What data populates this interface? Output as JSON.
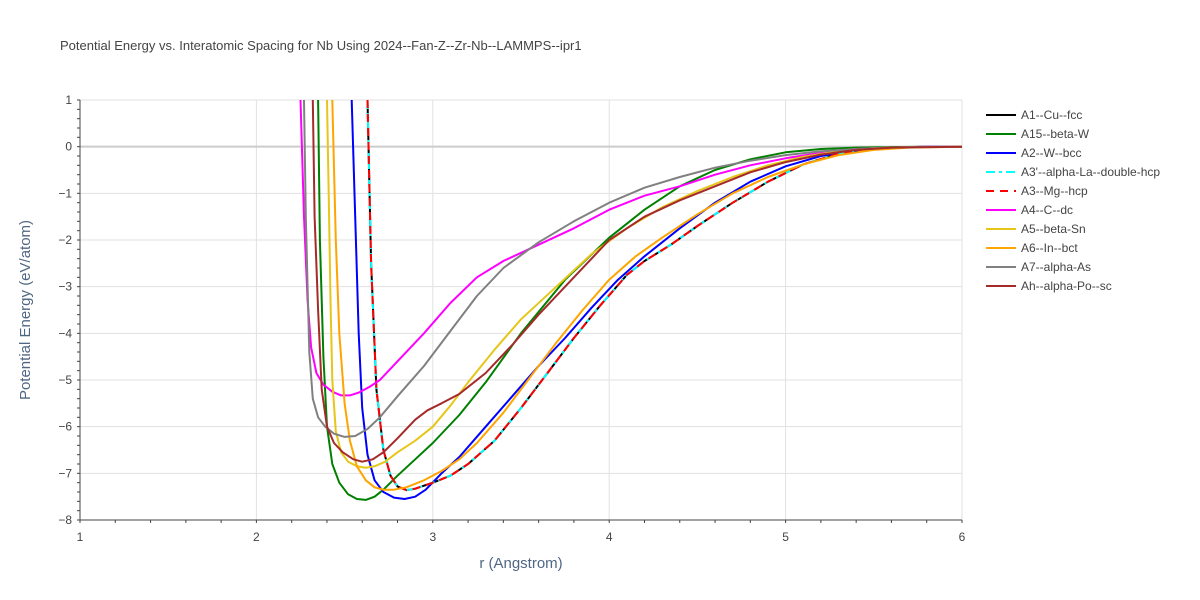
{
  "chart_data": {
    "type": "line",
    "title": "Potential Energy vs. Interatomic Spacing for Nb Using 2024--Fan-Z--Zr-Nb--LAMMPS--ipr1",
    "xlabel": "r (Angstrom)",
    "ylabel": "Potential Energy (eV/atom)",
    "xlim": [
      1,
      6
    ],
    "ylim": [
      -8,
      1
    ],
    "xticks": [
      1,
      2,
      3,
      4,
      5,
      6
    ],
    "yticks": [
      1,
      0,
      -1,
      -2,
      -3,
      -4,
      -5,
      -6,
      -7,
      -8
    ],
    "grid": true,
    "legend_position": "right",
    "series": [
      {
        "name": "A1--Cu--fcc",
        "color": "#000000",
        "dash": "solid",
        "x": [
          2.63,
          2.65,
          2.68,
          2.72,
          2.76,
          2.8,
          2.85,
          2.9,
          3.0,
          3.1,
          3.2,
          3.35,
          3.5,
          3.65,
          3.8,
          3.95,
          4.1,
          4.2,
          4.35,
          4.5,
          4.7,
          4.9,
          5.1,
          5.3,
          5.5,
          5.7,
          5.85,
          6.0
        ],
        "y": [
          1.0,
          -2.5,
          -5.2,
          -6.5,
          -7.05,
          -7.28,
          -7.36,
          -7.33,
          -7.2,
          -7.05,
          -6.8,
          -6.3,
          -5.6,
          -4.85,
          -4.1,
          -3.4,
          -2.75,
          -2.45,
          -2.1,
          -1.7,
          -1.2,
          -0.75,
          -0.38,
          -0.15,
          -0.05,
          -0.01,
          0.0,
          0.0
        ]
      },
      {
        "name": "A15--beta-W",
        "color": "#008000",
        "dash": "solid",
        "x": [
          2.35,
          2.36,
          2.38,
          2.4,
          2.43,
          2.47,
          2.52,
          2.57,
          2.62,
          2.67,
          2.72,
          2.8,
          2.9,
          3.0,
          3.15,
          3.3,
          3.5,
          3.75,
          4.0,
          4.2,
          4.4,
          4.6,
          4.8,
          5.0,
          5.2,
          5.4,
          5.6,
          5.8,
          6.0
        ],
        "y": [
          1.0,
          -2.0,
          -4.5,
          -6.0,
          -6.8,
          -7.2,
          -7.45,
          -7.55,
          -7.57,
          -7.5,
          -7.35,
          -7.05,
          -6.7,
          -6.35,
          -5.75,
          -5.05,
          -4.0,
          -2.85,
          -1.95,
          -1.35,
          -0.85,
          -0.5,
          -0.27,
          -0.12,
          -0.05,
          -0.02,
          -0.01,
          0.0,
          0.0
        ]
      },
      {
        "name": "A2--W--bcc",
        "color": "#0000ff",
        "dash": "solid",
        "x": [
          2.54,
          2.56,
          2.58,
          2.6,
          2.63,
          2.67,
          2.72,
          2.78,
          2.84,
          2.9,
          2.96,
          3.05,
          3.15,
          3.3,
          3.45,
          3.6,
          3.75,
          3.9,
          4.05,
          4.2,
          4.4,
          4.6,
          4.8,
          5.0,
          5.2,
          5.4,
          5.6,
          5.8,
          6.0
        ],
        "y": [
          1.0,
          -1.5,
          -4.0,
          -5.6,
          -6.6,
          -7.15,
          -7.4,
          -7.52,
          -7.55,
          -7.5,
          -7.35,
          -7.0,
          -6.65,
          -6.0,
          -5.35,
          -4.7,
          -4.1,
          -3.45,
          -2.85,
          -2.35,
          -1.75,
          -1.2,
          -0.75,
          -0.42,
          -0.2,
          -0.08,
          -0.02,
          0.0,
          0.0
        ]
      },
      {
        "name": "A3'--alpha-La--double-hcp",
        "color": "#00ffff",
        "dash": "dashdot",
        "x": [
          2.63,
          2.65,
          2.68,
          2.72,
          2.76,
          2.8,
          2.85,
          2.9,
          3.0,
          3.1,
          3.2,
          3.35,
          3.5,
          3.65,
          3.8,
          3.95,
          4.1,
          4.2,
          4.35,
          4.5,
          4.7,
          4.9,
          5.1,
          5.3,
          5.5,
          5.7,
          5.85,
          6.0
        ],
        "y": [
          1.0,
          -2.5,
          -5.2,
          -6.5,
          -7.05,
          -7.28,
          -7.36,
          -7.33,
          -7.2,
          -7.05,
          -6.8,
          -6.3,
          -5.6,
          -4.85,
          -4.1,
          -3.4,
          -2.75,
          -2.45,
          -2.1,
          -1.7,
          -1.2,
          -0.75,
          -0.38,
          -0.15,
          -0.05,
          -0.01,
          0.0,
          0.0
        ]
      },
      {
        "name": "A3--Mg--hcp",
        "color": "#ff0000",
        "dash": "dash",
        "x": [
          2.63,
          2.65,
          2.68,
          2.72,
          2.76,
          2.8,
          2.85,
          2.9,
          3.0,
          3.1,
          3.2,
          3.35,
          3.5,
          3.65,
          3.8,
          3.95,
          4.1,
          4.2,
          4.35,
          4.5,
          4.7,
          4.9,
          5.1,
          5.3,
          5.5,
          5.7,
          5.85,
          6.0
        ],
        "y": [
          1.0,
          -2.5,
          -5.2,
          -6.5,
          -7.05,
          -7.28,
          -7.36,
          -7.33,
          -7.2,
          -7.05,
          -6.8,
          -6.3,
          -5.6,
          -4.85,
          -4.1,
          -3.4,
          -2.75,
          -2.45,
          -2.1,
          -1.7,
          -1.2,
          -0.75,
          -0.38,
          -0.15,
          -0.05,
          -0.01,
          0.0,
          0.0
        ]
      },
      {
        "name": "A4--C--dc",
        "color": "#ff00ff",
        "dash": "solid",
        "x": [
          2.25,
          2.27,
          2.29,
          2.31,
          2.34,
          2.38,
          2.43,
          2.48,
          2.53,
          2.58,
          2.64,
          2.7,
          2.8,
          2.95,
          3.1,
          3.25,
          3.4,
          3.6,
          3.8,
          4.0,
          4.2,
          4.4,
          4.6,
          4.8,
          5.0,
          5.2,
          5.4,
          5.6,
          5.8,
          6.0
        ],
        "y": [
          1.0,
          -1.5,
          -3.3,
          -4.3,
          -4.85,
          -5.1,
          -5.25,
          -5.33,
          -5.33,
          -5.27,
          -5.15,
          -5.0,
          -4.6,
          -4.0,
          -3.35,
          -2.8,
          -2.45,
          -2.1,
          -1.75,
          -1.35,
          -1.05,
          -0.85,
          -0.6,
          -0.4,
          -0.25,
          -0.13,
          -0.05,
          -0.02,
          0.0,
          0.0
        ]
      },
      {
        "name": "A5--beta-Sn",
        "color": "#e6c619",
        "dash": "solid",
        "x": [
          2.4,
          2.41,
          2.42,
          2.43,
          2.45,
          2.48,
          2.52,
          2.57,
          2.62,
          2.67,
          2.73,
          2.8,
          2.9,
          3.0,
          3.1,
          3.2,
          3.35,
          3.5,
          3.7,
          3.9,
          4.1,
          4.3,
          4.5,
          4.7,
          4.9,
          5.1,
          5.3,
          5.5,
          5.7,
          6.0
        ],
        "y": [
          1.0,
          -1.0,
          -3.3,
          -5.0,
          -6.1,
          -6.55,
          -6.75,
          -6.85,
          -6.88,
          -6.85,
          -6.75,
          -6.55,
          -6.3,
          -6.0,
          -5.55,
          -5.05,
          -4.35,
          -3.7,
          -3.0,
          -2.3,
          -1.75,
          -1.3,
          -0.95,
          -0.65,
          -0.4,
          -0.22,
          -0.1,
          -0.03,
          -0.01,
          0.0
        ]
      },
      {
        "name": "A6--In--bct",
        "color": "#ffa500",
        "dash": "solid",
        "x": [
          2.43,
          2.45,
          2.47,
          2.5,
          2.53,
          2.57,
          2.62,
          2.67,
          2.72,
          2.78,
          2.85,
          2.95,
          3.05,
          3.15,
          3.25,
          3.4,
          3.55,
          3.7,
          3.85,
          4.0,
          4.15,
          4.3,
          4.5,
          4.7,
          4.9,
          5.1,
          5.3,
          5.5,
          5.7,
          6.0
        ],
        "y": [
          1.0,
          -2.0,
          -4.0,
          -5.5,
          -6.3,
          -6.85,
          -7.15,
          -7.3,
          -7.35,
          -7.35,
          -7.3,
          -7.15,
          -6.95,
          -6.7,
          -6.35,
          -5.7,
          -4.95,
          -4.2,
          -3.5,
          -2.85,
          -2.35,
          -1.95,
          -1.45,
          -1.0,
          -0.65,
          -0.38,
          -0.18,
          -0.07,
          -0.02,
          0.0
        ]
      },
      {
        "name": "A7--alpha-As",
        "color": "#808080",
        "dash": "solid",
        "x": [
          2.27,
          2.28,
          2.29,
          2.3,
          2.32,
          2.35,
          2.39,
          2.44,
          2.5,
          2.56,
          2.63,
          2.7,
          2.8,
          2.95,
          3.1,
          3.25,
          3.4,
          3.6,
          3.8,
          4.0,
          4.2,
          4.4,
          4.6,
          4.8,
          5.0,
          5.2,
          5.4,
          5.6,
          5.8,
          6.0
        ],
        "y": [
          1.0,
          -1.5,
          -3.0,
          -4.4,
          -5.4,
          -5.8,
          -6.0,
          -6.15,
          -6.22,
          -6.2,
          -6.05,
          -5.8,
          -5.35,
          -4.7,
          -3.95,
          -3.2,
          -2.6,
          -2.05,
          -1.6,
          -1.2,
          -0.88,
          -0.65,
          -0.45,
          -0.3,
          -0.18,
          -0.1,
          -0.05,
          -0.02,
          0.0,
          0.0
        ]
      },
      {
        "name": "Ah--alpha-Po--sc",
        "color": "#a52a2a",
        "dash": "solid",
        "x": [
          2.32,
          2.33,
          2.35,
          2.37,
          2.4,
          2.44,
          2.49,
          2.55,
          2.6,
          2.66,
          2.72,
          2.8,
          2.9,
          2.97,
          3.05,
          3.15,
          3.3,
          3.45,
          3.6,
          3.8,
          4.0,
          4.2,
          4.4,
          4.6,
          4.8,
          5.0,
          5.2,
          5.4,
          5.6,
          6.0
        ],
        "y": [
          1.0,
          -1.5,
          -3.5,
          -5.2,
          -6.0,
          -6.35,
          -6.55,
          -6.7,
          -6.75,
          -6.7,
          -6.55,
          -6.25,
          -5.85,
          -5.65,
          -5.5,
          -5.3,
          -4.85,
          -4.25,
          -3.6,
          -2.8,
          -2.0,
          -1.5,
          -1.15,
          -0.85,
          -0.55,
          -0.33,
          -0.17,
          -0.07,
          -0.02,
          0.0
        ]
      }
    ]
  }
}
